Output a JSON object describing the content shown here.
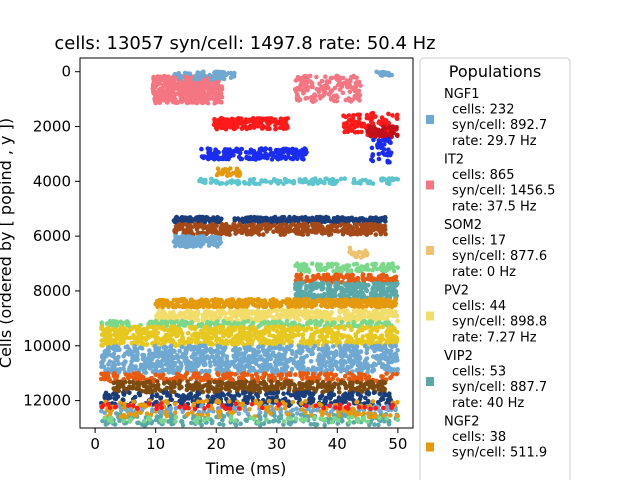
{
  "chart_data": {
    "type": "scatter",
    "title": "cells: 13057   syn/cell: 1497.8   rate: 50.4 Hz",
    "xlabel": "Time (ms)",
    "ylabel": "Cells (ordered by [ popind , y ])",
    "xlim": [
      -2.5,
      52.5
    ],
    "ylim": [
      13000,
      -500
    ],
    "xticks": [
      0,
      10,
      20,
      30,
      40,
      50
    ],
    "yticks": [
      0,
      2000,
      4000,
      6000,
      8000,
      10000,
      12000
    ],
    "y_inverted": true,
    "grid": false,
    "legend": {
      "title": "Populations",
      "placement": "outside-right",
      "entries": [
        {
          "name": "NGF1",
          "cells": "cells: 232",
          "syn": "syn/cell: 892.7",
          "rate": "rate: 29.7 Hz",
          "color": "#6fa8d0"
        },
        {
          "name": "IT2",
          "cells": "cells: 865",
          "syn": "syn/cell: 1456.5",
          "rate": "rate: 37.5 Hz",
          "color": "#f47682"
        },
        {
          "name": "SOM2",
          "cells": "cells: 17",
          "syn": "syn/cell: 877.6",
          "rate": "rate: 0 Hz",
          "color": "#eec36f"
        },
        {
          "name": "PV2",
          "cells": "cells: 44",
          "syn": "syn/cell: 898.8",
          "rate": "rate: 7.27 Hz",
          "color": "#f2dd6a"
        },
        {
          "name": "VIP2",
          "cells": "cells: 53",
          "syn": "syn/cell: 887.7",
          "rate": "rate: 40 Hz",
          "color": "#5ba8a8"
        },
        {
          "name": "NGF2",
          "cells": "cells: 38",
          "syn": "syn/cell: 511.9",
          "rate": "",
          "color": "#e59a0e"
        }
      ]
    },
    "spike_bands": [
      {
        "color": "#f47682",
        "x": [
          9.5,
          21
        ],
        "y": [
          150,
          1150
        ],
        "n": 500
      },
      {
        "color": "#f47682",
        "x": [
          33,
          44
        ],
        "y": [
          150,
          1100
        ],
        "n": 160
      },
      {
        "color": "#6fa8d0",
        "x": [
          13,
          23
        ],
        "y": [
          0,
          300
        ],
        "n": 60
      },
      {
        "color": "#6fa8d0",
        "x": [
          46.5,
          49
        ],
        "y": [
          0,
          150
        ],
        "n": 25
      },
      {
        "color": "#ff1a1a",
        "x": [
          19.5,
          32
        ],
        "y": [
          1700,
          2100
        ],
        "n": 160
      },
      {
        "color": "#ff1a1a",
        "x": [
          41,
          50
        ],
        "y": [
          1500,
          2300
        ],
        "n": 100
      },
      {
        "color": "#c0101a",
        "x": [
          45,
          50
        ],
        "y": [
          2000,
          2400
        ],
        "n": 60
      },
      {
        "color": "#1a2cf0",
        "x": [
          17.5,
          35
        ],
        "y": [
          2800,
          3200
        ],
        "n": 170
      },
      {
        "color": "#1a2cf0",
        "x": [
          45.5,
          49
        ],
        "y": [
          2400,
          3400
        ],
        "n": 40
      },
      {
        "color": "#e59a0e",
        "x": [
          20,
          24
        ],
        "y": [
          3500,
          3800
        ],
        "n": 30
      },
      {
        "color": "#5cc5cd",
        "x": [
          17,
          50
        ],
        "y": [
          3900,
          4100
        ],
        "n": 140
      },
      {
        "color": "#1a3d7a",
        "x": [
          13,
          21
        ],
        "y": [
          5300,
          5500
        ],
        "n": 90
      },
      {
        "color": "#1a3d7a",
        "x": [
          23,
          48
        ],
        "y": [
          5300,
          5500
        ],
        "n": 220
      },
      {
        "color": "#a44a18",
        "x": [
          13,
          48
        ],
        "y": [
          5550,
          5950
        ],
        "n": 380
      },
      {
        "color": "#6fa8d0",
        "x": [
          13,
          21
        ],
        "y": [
          6000,
          6400
        ],
        "n": 110
      },
      {
        "color": "#eec36f",
        "x": [
          42,
          45
        ],
        "y": [
          6400,
          6800
        ],
        "n": 18
      },
      {
        "color": "#7bd88a",
        "x": [
          33,
          50
        ],
        "y": [
          7000,
          7300
        ],
        "n": 110
      },
      {
        "color": "#e85a10",
        "x": [
          33,
          50
        ],
        "y": [
          7400,
          7700
        ],
        "n": 120
      },
      {
        "color": "#5ba8a8",
        "x": [
          33,
          50
        ],
        "y": [
          7700,
          8400
        ],
        "n": 300
      },
      {
        "color": "#e59a0e",
        "x": [
          10,
          50
        ],
        "y": [
          8300,
          8600
        ],
        "n": 500
      },
      {
        "color": "#f2dd6a",
        "x": [
          10,
          50
        ],
        "y": [
          8700,
          9100
        ],
        "n": 450
      },
      {
        "color": "#7bd88a",
        "x": [
          1,
          49
        ],
        "y": [
          9100,
          9300
        ],
        "n": 200
      },
      {
        "color": "#e6c820",
        "x": [
          1,
          50
        ],
        "y": [
          9300,
          10000
        ],
        "n": 700
      },
      {
        "color": "#6fa8d0",
        "x": [
          1,
          50
        ],
        "y": [
          10000,
          11000
        ],
        "n": 900
      },
      {
        "color": "#e85a10",
        "x": [
          1,
          50
        ],
        "y": [
          11000,
          11300
        ],
        "n": 250
      },
      {
        "color": "#7d4a10",
        "x": [
          3,
          48
        ],
        "y": [
          11300,
          11700
        ],
        "n": 380
      },
      {
        "color": "#1a3d7a",
        "x": [
          1,
          49
        ],
        "y": [
          11700,
          12200
        ],
        "n": 300
      },
      {
        "color": "#6fa8d0",
        "x": [
          1,
          50
        ],
        "y": [
          12200,
          12500
        ],
        "n": 150
      },
      {
        "color": "#5ba8a8",
        "x": [
          1,
          50
        ],
        "y": [
          12500,
          12900
        ],
        "n": 200
      },
      {
        "color": "#e59a0e",
        "x": [
          1,
          50
        ],
        "y": [
          12000,
          12600
        ],
        "n": 150
      },
      {
        "color": "#ff1a1a",
        "x": [
          1,
          50
        ],
        "y": [
          12100,
          12300
        ],
        "n": 50
      },
      {
        "color": "#7bd88a",
        "x": [
          1,
          50
        ],
        "y": [
          12600,
          12800
        ],
        "n": 60
      }
    ]
  }
}
